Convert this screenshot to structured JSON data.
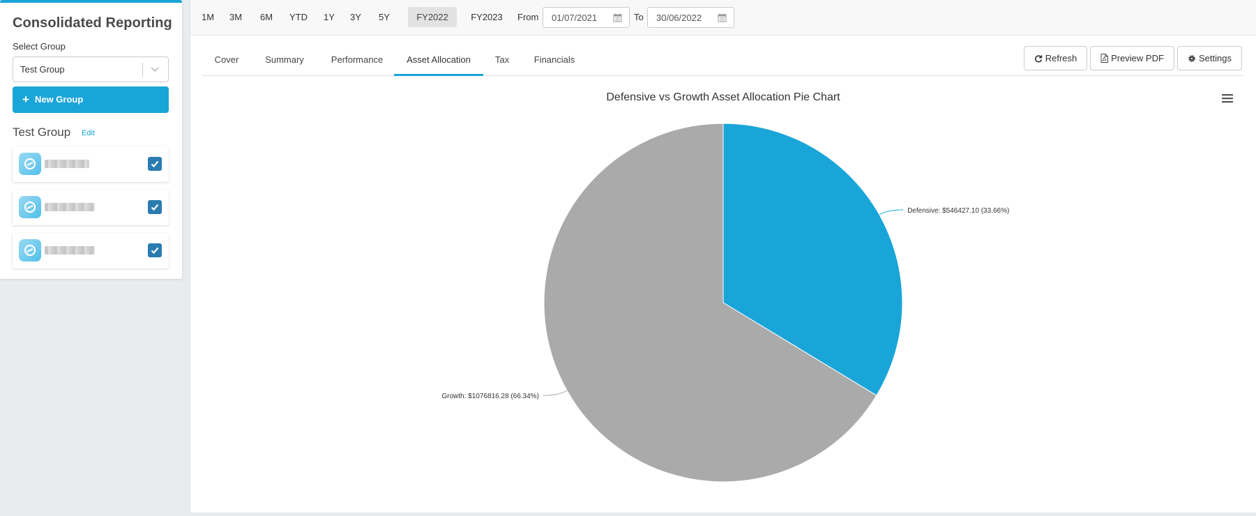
{
  "sidebar": {
    "title": "Consolidated Reporting",
    "select_label": "Select Group",
    "select_value": "Test Group",
    "new_group_label": "New Group",
    "group_name": "Test Group",
    "edit_label": "Edit",
    "accounts": [
      {
        "checked": true
      },
      {
        "checked": true
      },
      {
        "checked": true
      }
    ]
  },
  "toolbar": {
    "periods": [
      "1M",
      "3M",
      "6M",
      "YTD",
      "1Y",
      "3Y",
      "5Y",
      "FY2022",
      "FY2023"
    ],
    "active_period": "FY2022",
    "from_label": "From",
    "from_value": "01/07/2021",
    "to_label": "To",
    "to_value": "30/06/2022"
  },
  "tabs": [
    "Cover",
    "Summary",
    "Performance",
    "Asset Allocation",
    "Tax",
    "Financials"
  ],
  "active_tab": "Asset Allocation",
  "actions": {
    "refresh": "Refresh",
    "preview_pdf": "Preview PDF",
    "settings": "Settings"
  },
  "colors": {
    "accent": "#1aa5d9",
    "defensive": "#1aa5d9",
    "growth": "#aaaaaa"
  },
  "icons": {
    "new_group": "plus-icon",
    "refresh": "refresh-icon",
    "pdf": "file-pdf-icon",
    "settings": "gear-icon",
    "date": "calendar-icon",
    "chart_menu": "hamburger-menu-icon"
  },
  "chart_data": {
    "type": "pie",
    "title": "Defensive vs Growth Asset Allocation Pie Chart",
    "slices": [
      {
        "name": "Defensive",
        "value": 546427.1,
        "percent": 33.66,
        "label": "Defensive: $546427.10 (33.66%)"
      },
      {
        "name": "Growth",
        "value": 1076816.28,
        "percent": 66.34,
        "label": "Growth: $1076816.28 (66.34%)"
      }
    ]
  }
}
